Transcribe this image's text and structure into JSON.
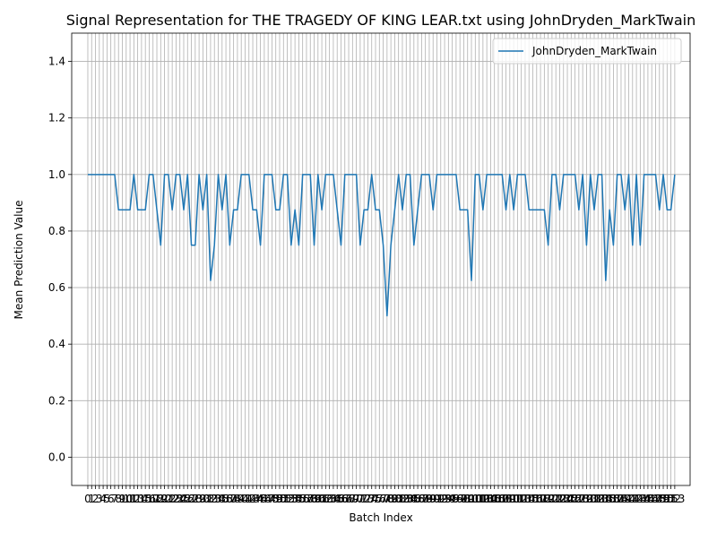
{
  "chart_data": {
    "type": "line",
    "title": "Signal Representation for THE TRAGEDY OF KING LEAR.txt using JohnDryden_MarkTwain",
    "x_label": "Batch Index",
    "y_label": "Mean Prediction Value",
    "x": [
      0,
      1,
      2,
      3,
      4,
      5,
      6,
      7,
      8,
      9,
      10,
      11,
      12,
      13,
      14,
      15,
      16,
      17,
      18,
      19,
      20,
      21,
      22,
      23,
      24,
      25,
      26,
      27,
      28,
      29,
      30,
      31,
      32,
      33,
      34,
      35,
      36,
      37,
      38,
      39,
      40,
      41,
      42,
      43,
      44,
      45,
      46,
      47,
      48,
      49,
      50,
      51,
      52,
      53,
      54,
      55,
      56,
      57,
      58,
      59,
      60,
      61,
      62,
      63,
      64,
      65,
      66,
      67,
      68,
      69,
      70,
      71,
      72,
      73,
      74,
      75,
      76,
      77,
      78,
      79,
      80,
      81,
      82,
      83,
      84,
      85,
      86,
      87,
      88,
      89,
      90,
      91,
      92,
      93,
      94,
      95,
      96,
      97,
      98,
      99,
      100,
      101,
      102,
      103,
      104,
      105,
      106,
      107,
      108,
      109,
      110,
      111,
      112,
      113,
      114,
      115,
      116,
      117,
      118,
      119,
      120,
      121,
      122,
      123,
      124,
      125,
      126,
      127,
      128,
      129,
      130,
      131,
      132,
      133,
      134,
      135,
      136,
      137,
      138,
      139,
      140,
      141,
      142,
      143,
      144,
      145,
      146,
      147,
      148,
      149,
      150,
      151,
      152,
      153
    ],
    "series": [
      {
        "name": "JohnDryden_MarkTwain",
        "color": "#1f77b4",
        "values": [
          1,
          1,
          1,
          1,
          1,
          1,
          1,
          1,
          0.875,
          0.875,
          0.875,
          0.875,
          1,
          0.875,
          0.875,
          0.875,
          1,
          1,
          0.875,
          0.75,
          1,
          1,
          0.875,
          1,
          1,
          0.875,
          1,
          0.75,
          0.75,
          1,
          0.875,
          1,
          0.625,
          0.75,
          1,
          0.875,
          1,
          0.75,
          0.875,
          0.875,
          1,
          1,
          1,
          0.875,
          0.875,
          0.75,
          1,
          1,
          1,
          0.875,
          0.875,
          1,
          1,
          0.75,
          0.875,
          0.75,
          1,
          1,
          1,
          0.75,
          1,
          0.875,
          1,
          1,
          1,
          0.875,
          0.75,
          1,
          1,
          1,
          1,
          0.75,
          0.875,
          0.875,
          1,
          0.875,
          0.875,
          0.75,
          0.5,
          0.75,
          0.875,
          1,
          0.875,
          1,
          1,
          0.75,
          0.875,
          1,
          1,
          1,
          0.875,
          1,
          1,
          1,
          1,
          1,
          1,
          0.875,
          0.875,
          0.875,
          0.625,
          1,
          1,
          0.875,
          1,
          1,
          1,
          1,
          1,
          0.875,
          1,
          0.875,
          1,
          1,
          1,
          0.875,
          0.875,
          0.875,
          0.875,
          0.875,
          0.75,
          1,
          1,
          0.875,
          1,
          1,
          1,
          1,
          0.875,
          1,
          0.75,
          1,
          0.875,
          1,
          1,
          0.625,
          0.875,
          0.75,
          1,
          1,
          0.875,
          1,
          0.75,
          1,
          0.75,
          1,
          1,
          1,
          1,
          0.875,
          1,
          0.875,
          0.875,
          1
        ]
      }
    ],
    "xlim": [
      -4.2,
      157
    ],
    "xticks": [
      0,
      1,
      2,
      3,
      4,
      5,
      6,
      7,
      8,
      9,
      10,
      11,
      12,
      13,
      14,
      15,
      16,
      17,
      18,
      19,
      20,
      21,
      22,
      23,
      24,
      25,
      26,
      27,
      28,
      29,
      30,
      31,
      32,
      33,
      34,
      35,
      36,
      37,
      38,
      39,
      40,
      41,
      42,
      43,
      44,
      45,
      46,
      47,
      48,
      49,
      50,
      51,
      52,
      53,
      54,
      55,
      56,
      57,
      58,
      59,
      60,
      61,
      62,
      63,
      64,
      65,
      66,
      67,
      68,
      69,
      70,
      71,
      72,
      73,
      74,
      75,
      76,
      77,
      78,
      79,
      80,
      81,
      82,
      83,
      84,
      85,
      86,
      87,
      88,
      89,
      90,
      91,
      92,
      93,
      94,
      95,
      96,
      97,
      98,
      99,
      100,
      101,
      102,
      103,
      104,
      105,
      106,
      107,
      108,
      109,
      110,
      111,
      112,
      113,
      114,
      115,
      116,
      117,
      118,
      119,
      120,
      121,
      122,
      123,
      124,
      125,
      126,
      127,
      128,
      129,
      130,
      131,
      132,
      133,
      134,
      135,
      136,
      137,
      138,
      139,
      140,
      141,
      142,
      143,
      144,
      145,
      146,
      147,
      148,
      149,
      150,
      151,
      152,
      153
    ],
    "ylim": [
      -0.1,
      1.5
    ],
    "yticks": [
      {
        "value": 0,
        "label": "0.0"
      },
      {
        "value": 0.2,
        "label": "0.2"
      },
      {
        "value": 0.4,
        "label": "0.4"
      },
      {
        "value": 0.6,
        "label": "0.6"
      },
      {
        "value": 0.8,
        "label": "0.8"
      },
      {
        "value": 1,
        "label": "1.0"
      },
      {
        "value": 1.2,
        "label": "1.2"
      },
      {
        "value": 1.4,
        "label": "1.4"
      }
    ],
    "grid": true,
    "legend": "upper right"
  }
}
